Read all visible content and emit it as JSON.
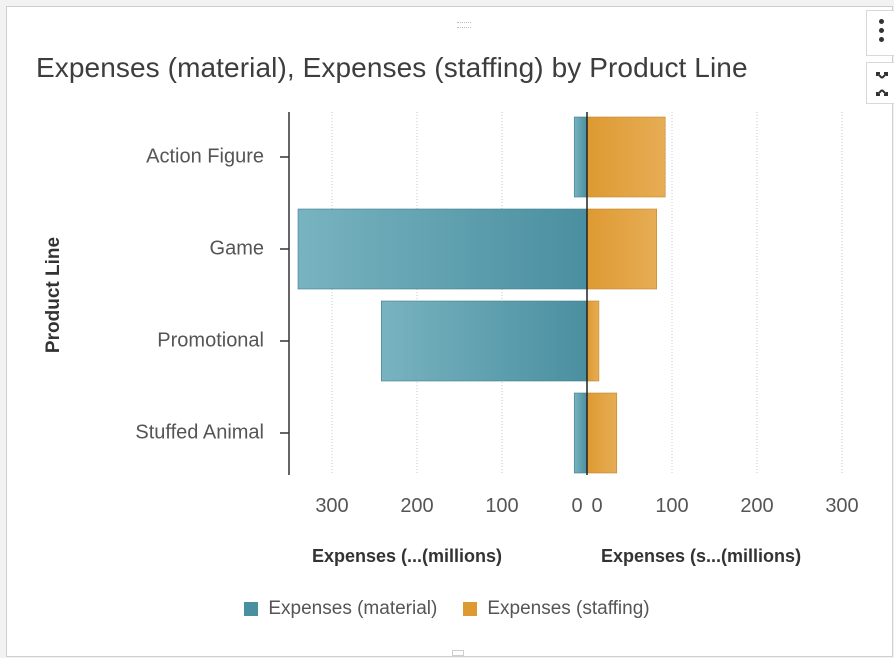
{
  "chart_data": {
    "type": "bar",
    "orientation": "horizontal",
    "layout": "butterfly",
    "title": "Expenses (material), Expenses (staffing) by Product Line",
    "ylabel": "Product Line",
    "categories": [
      "Action Figure",
      "Game",
      "Promotional",
      "Stuffed Animal"
    ],
    "series": [
      {
        "name": "Expenses (material)",
        "axis_title": "Expenses (...(millions)",
        "direction": "left",
        "color": "#4a8fa0",
        "values": [
          15,
          340,
          242,
          15
        ],
        "xlim": [
          0,
          340
        ],
        "ticks": [
          300,
          200,
          100,
          0
        ]
      },
      {
        "name": "Expenses (staffing)",
        "axis_title": "Expenses (s...(millions)",
        "direction": "right",
        "color": "#de9a32",
        "values": [
          92,
          82,
          14,
          35
        ],
        "xlim": [
          0,
          300
        ],
        "ticks": [
          0,
          100,
          200,
          300
        ]
      }
    ],
    "grid": true,
    "legend_position": "bottom"
  }
}
